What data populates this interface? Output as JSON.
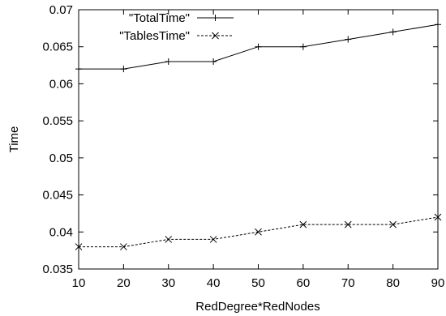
{
  "chart_data": {
    "type": "line",
    "title": "",
    "xlabel": "RedDegree*RedNodes",
    "ylabel": "Time",
    "x": [
      10,
      20,
      30,
      40,
      50,
      60,
      70,
      80,
      90
    ],
    "xlim": [
      10,
      90
    ],
    "ylim": [
      0.035,
      0.07
    ],
    "xticks": [
      "10",
      "20",
      "30",
      "40",
      "50",
      "60",
      "70",
      "80",
      "90"
    ],
    "yticks": [
      "0.035",
      "0.04",
      "0.045",
      "0.05",
      "0.055",
      "0.06",
      "0.065",
      "0.07"
    ],
    "grid": false,
    "legend_position": "top-left",
    "series": [
      {
        "name": "\"TotalTime\"",
        "marker": "plus",
        "line_style": "solid",
        "color": "#000000",
        "values": [
          0.062,
          0.062,
          0.063,
          0.063,
          0.065,
          0.065,
          0.066,
          0.067,
          0.068
        ]
      },
      {
        "name": "\"TablesTime\"",
        "marker": "cross",
        "line_style": "dashed",
        "color": "#000000",
        "values": [
          0.038,
          0.038,
          0.039,
          0.039,
          0.04,
          0.041,
          0.041,
          0.041,
          0.042
        ]
      }
    ]
  }
}
